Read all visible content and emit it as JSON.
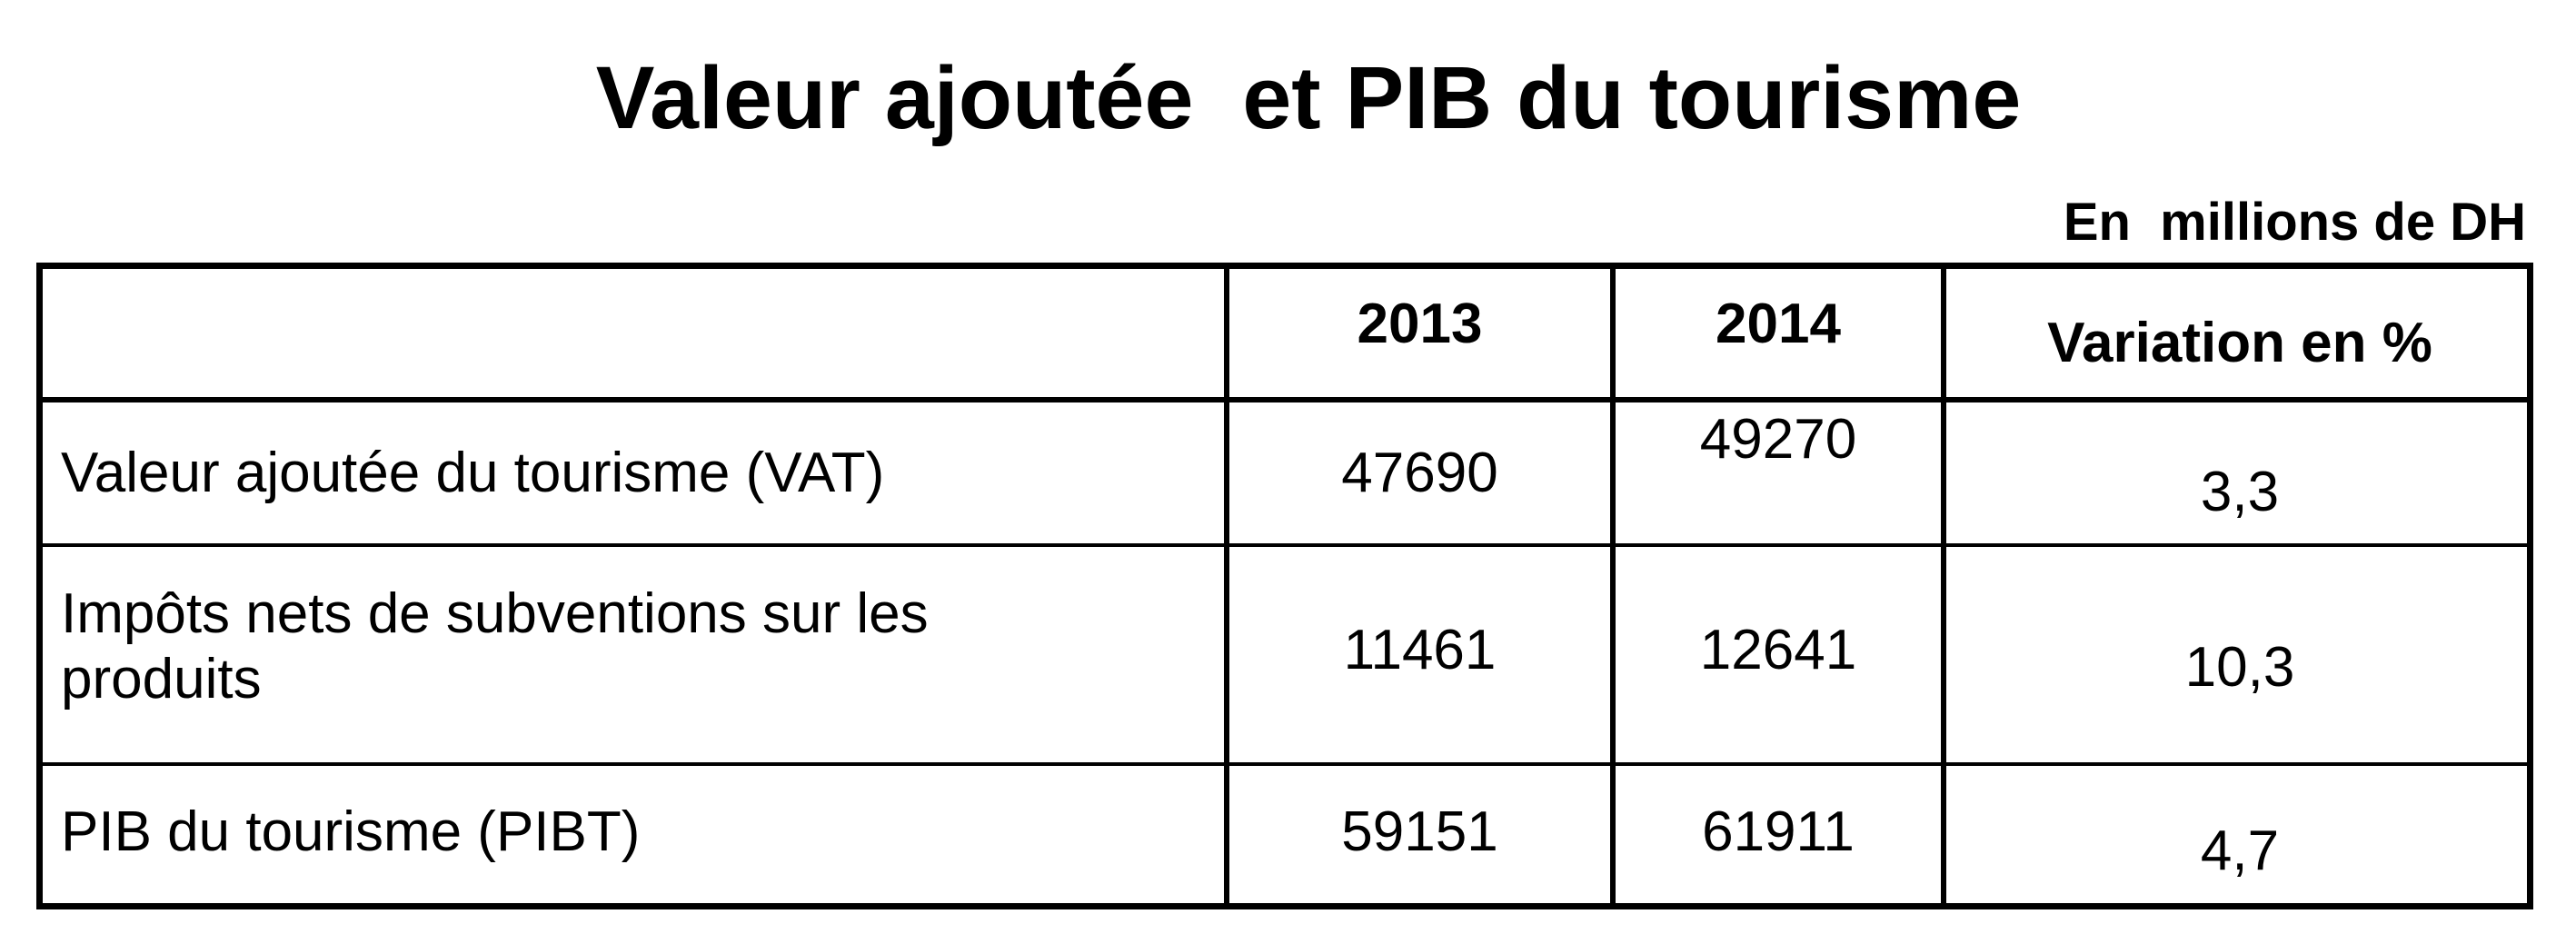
{
  "title": "Valeur ajoutée  et PIB du tourisme",
  "unit": "En  millions de DH",
  "table": {
    "columns": [
      "",
      "2013",
      "2014",
      "Variation en %"
    ],
    "rows": [
      {
        "label": "Valeur ajoutée du tourisme (VAT)",
        "y2013": "47690",
        "y2014": "49270",
        "variation": "3,3"
      },
      {
        "label": "Impôts nets de subventions sur les produits",
        "y2013": "11461",
        "y2014": "12641",
        "variation": "10,3"
      },
      {
        "label": "PIB du tourisme (PIBT)",
        "y2013": "59151",
        "y2014": "61911",
        "variation": "4,7"
      }
    ]
  }
}
